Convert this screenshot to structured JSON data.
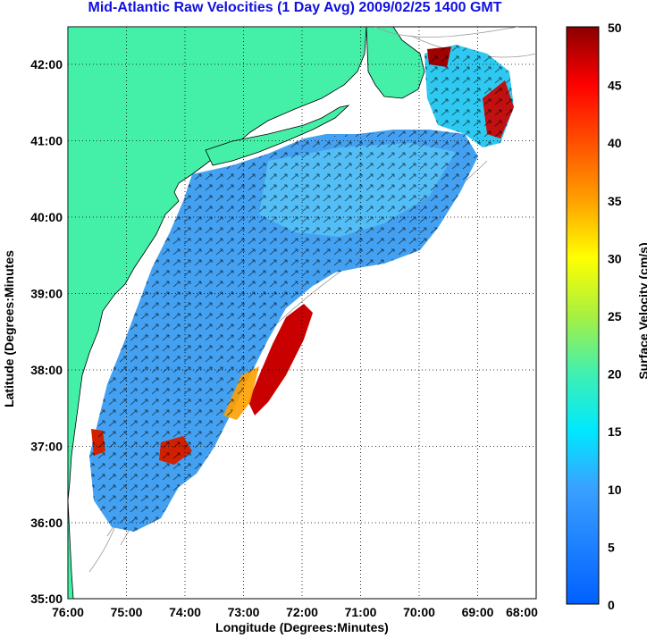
{
  "title": "Mid-Atlantic Raw Velocities (1 Day Avg) 2009/02/25 1400 GMT",
  "axes": {
    "xlabel": "Longitude (Degrees:Minutes)",
    "ylabel": "Latitude (Degrees:Minutes",
    "xticks": [
      "76:00",
      "75:00",
      "74:00",
      "73:00",
      "72:00",
      "71:00",
      "70:00",
      "69:00",
      "68:00"
    ],
    "yticks": [
      "42:00",
      "41:00",
      "40:00",
      "39:00",
      "38:00",
      "37:00",
      "36:00",
      "35:00"
    ]
  },
  "colorbar": {
    "label": "Surface Velocity (cm/s)",
    "ticks": [
      "50",
      "45",
      "40",
      "35",
      "30",
      "25",
      "20",
      "15",
      "10",
      "5",
      "0"
    ],
    "range": [
      0,
      50
    ]
  },
  "colors": {
    "land": "#44f0a8",
    "water": "#ffffff",
    "title": "#1010e0"
  },
  "chart_data": {
    "type": "heatmap",
    "xlim": [
      -76,
      -68
    ],
    "ylim": [
      35,
      42.5
    ],
    "grid": true,
    "zlim": [
      0,
      50
    ]
  }
}
